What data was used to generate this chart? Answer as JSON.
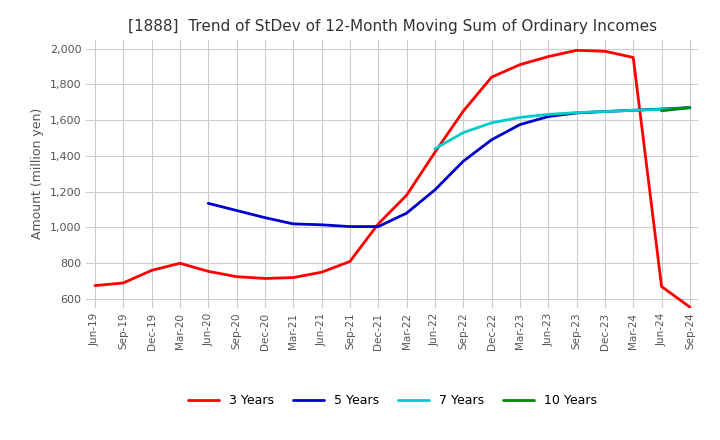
{
  "title": "[1888]  Trend of StDev of 12-Month Moving Sum of Ordinary Incomes",
  "ylabel": "Amount (million yen)",
  "background_color": "#ffffff",
  "grid_color": "#cccccc",
  "ylim": [
    550,
    2050
  ],
  "yticks": [
    600,
    800,
    1000,
    1200,
    1400,
    1600,
    1800,
    2000
  ],
  "x_labels": [
    "Jun-19",
    "Sep-19",
    "Dec-19",
    "Mar-20",
    "Jun-20",
    "Sep-20",
    "Dec-20",
    "Mar-21",
    "Jun-21",
    "Sep-21",
    "Dec-21",
    "Mar-22",
    "Jun-22",
    "Sep-22",
    "Dec-22",
    "Mar-23",
    "Jun-23",
    "Sep-23",
    "Dec-23",
    "Mar-24",
    "Jun-24",
    "Sep-24"
  ],
  "series": {
    "3 Years": {
      "color": "#ff0000",
      "data": [
        675,
        690,
        760,
        800,
        755,
        725,
        715,
        720,
        750,
        810,
        1020,
        1180,
        1420,
        1650,
        1840,
        1910,
        1955,
        1990,
        1985,
        1950,
        670,
        555
      ]
    },
    "5 Years": {
      "color": "#0000cc",
      "data": [
        null,
        null,
        null,
        null,
        1135,
        1095,
        1055,
        1020,
        1015,
        1005,
        1005,
        1080,
        1210,
        1370,
        1490,
        1575,
        1620,
        1640,
        1648,
        1655,
        1662,
        1670
      ]
    },
    "7 Years": {
      "color": "#00cccc",
      "data": [
        null,
        null,
        null,
        null,
        null,
        null,
        null,
        null,
        null,
        null,
        null,
        null,
        1440,
        1530,
        1585,
        1615,
        1632,
        1642,
        1648,
        1655,
        1660,
        1668
      ]
    },
    "10 Years": {
      "color": "#008800",
      "data": [
        null,
        null,
        null,
        null,
        null,
        null,
        null,
        null,
        null,
        null,
        null,
        null,
        null,
        null,
        null,
        null,
        null,
        null,
        null,
        null,
        1652,
        1670
      ]
    }
  },
  "legend_order": [
    "3 Years",
    "5 Years",
    "7 Years",
    "10 Years"
  ]
}
